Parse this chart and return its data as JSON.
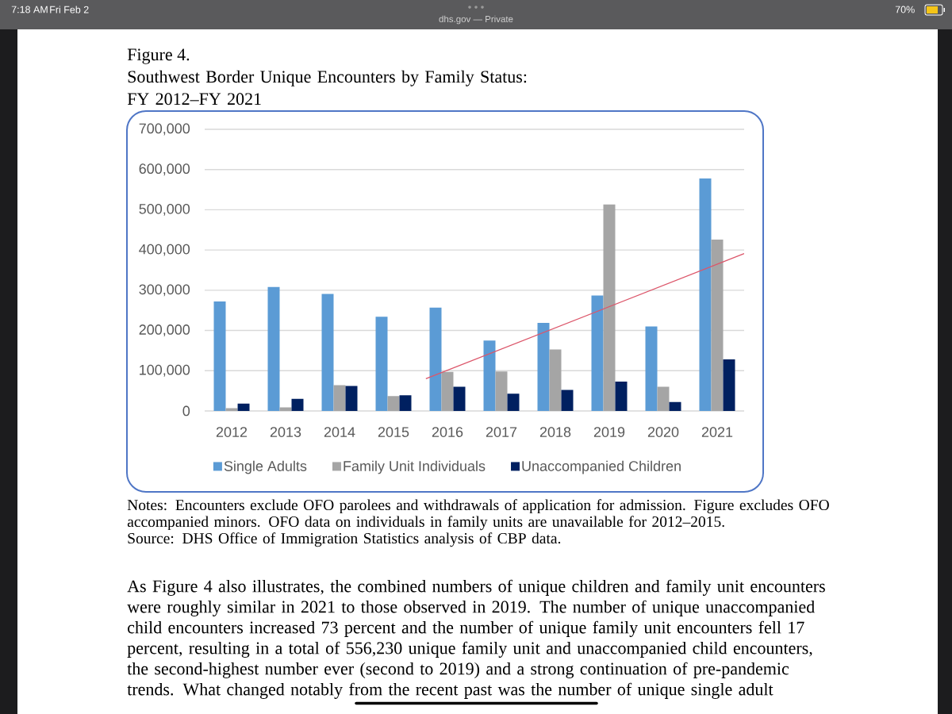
{
  "chart_data": {
    "type": "bar",
    "title": "Figure 4.",
    "subtitle": "Southwest Border Unique Encounters by Family Status: FY 2012–FY 2021",
    "x": [
      2012,
      2013,
      2014,
      2015,
      2016,
      2017,
      2018,
      2019,
      2020,
      2021
    ],
    "xlim": [
      2011.5,
      2021.5
    ],
    "xticks": [
      2012,
      2013,
      2014,
      2015,
      2016,
      2017,
      2018,
      2019,
      2020,
      2021
    ],
    "ylim": [
      0,
      700000
    ],
    "yticks": [
      0,
      {
        "value": 100000,
        "label": "100,000"
      },
      {
        "value": 200000,
        "label": "200,000"
      },
      {
        "value": 300000,
        "label": "300,000"
      },
      {
        "value": 400000,
        "label": "400,000"
      },
      {
        "value": 500000,
        "label": "500,000"
      },
      {
        "value": 600000,
        "label": "600,000"
      },
      {
        "value": 700000,
        "label": "700,000"
      }
    ],
    "series": [
      {
        "name": "Single Adults",
        "color": "#5b9bd5",
        "values": [
          272000,
          308000,
          291000,
          234000,
          257000,
          175000,
          219000,
          287000,
          210000,
          578000
        ]
      },
      {
        "name": "Family Unit Individuals",
        "color": "#a5a5a5",
        "values": [
          7000,
          9000,
          64000,
          37000,
          97000,
          98000,
          153000,
          513000,
          60000,
          426000
        ]
      },
      {
        "name": "Unaccompanied Children",
        "color": "#002060",
        "values": [
          18000,
          30000,
          62000,
          39000,
          60000,
          43000,
          52000,
          73000,
          22000,
          128000
        ]
      },
      {
        "type": "line",
        "color": "#dc566a",
        "x": [
          2015.6,
          2021.5
        ],
        "values": [
          80000,
          391000
        ]
      }
    ],
    "grid": "y",
    "legend": "bottom",
    "annotations": [
      "Notes: Encounters exclude OFO parolees and withdrawals of application for admission. Figure excludes OFO accompanied minors. OFO data on individuals in family units are unavailable for 2012–2015.",
      "Source: DHS Office of Immigration Statistics analysis of CBP data.",
      "As Figure 4 also illustrates, the combined numbers of unique children and family unit encounters were roughly similar in 2021 to those observed in 2019. The number of unique unaccompanied child encounters increased 73 percent and the number of unique family unit encounters fell 17 percent, resulting in a total of 556,230 unique family unit and unaccompanied child encounters, the second-highest number ever (second to 2019) and a strong continuation of pre-pandemic trends. What changed notably from the recent past was the number of unique single adult",
      "7:18 AM",
      "Fri Feb 2",
      "dhs.gov — Private",
      "70%"
    ]
  }
}
